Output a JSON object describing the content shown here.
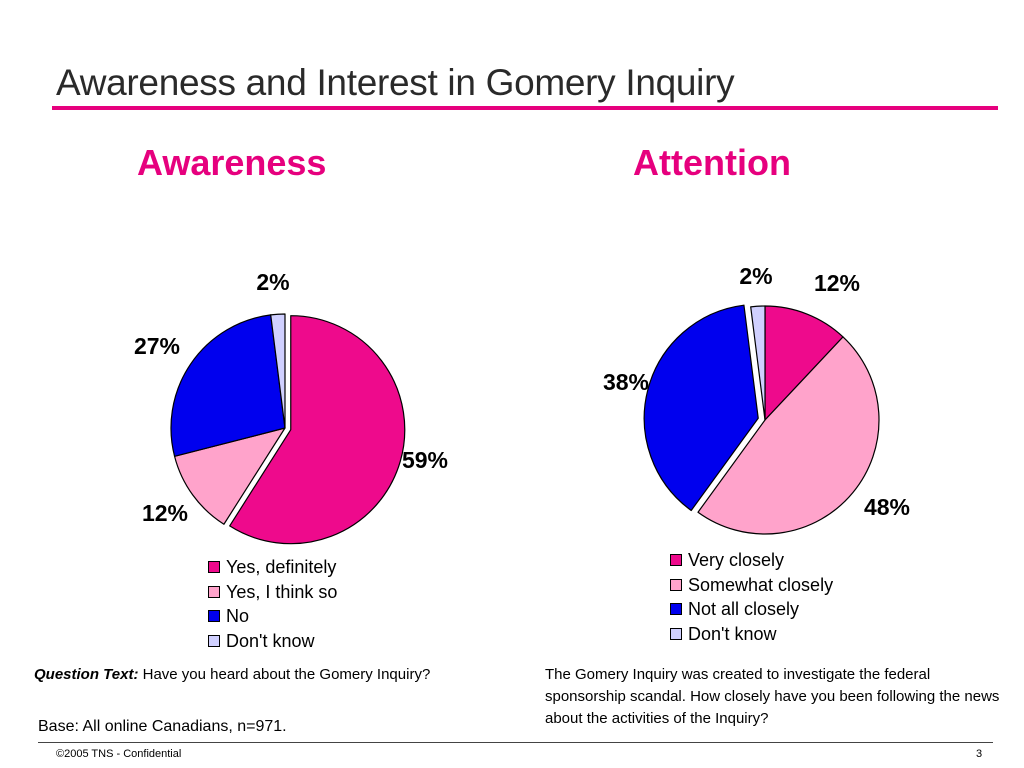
{
  "slide": {
    "title": "Awareness and Interest in Gomery Inquiry",
    "base": "Base: All online Canadians, n=971.",
    "copyright": "©2005 TNS - Confidential",
    "page_number": "3"
  },
  "colors": {
    "accent": "#e6007e",
    "rule": "#e6007e",
    "series": [
      "#ee0a8c",
      "#ffa3cb",
      "#0000ee",
      "#d0d0ff"
    ]
  },
  "left_chart": {
    "question_label": "Question Text:",
    "question_text": " Have you heard about the Gomery Inquiry?"
  },
  "right_chart": {
    "question_text": "The Gomery Inquiry was created to investigate the federal sponsorship scandal. How closely have you been following the news about the activities of the Inquiry?"
  },
  "chart_data": [
    {
      "type": "pie",
      "title": "Awareness",
      "categories": [
        "Yes, definitely",
        "Yes, I think so",
        "No",
        "Don't know"
      ],
      "values": [
        59,
        12,
        27,
        2
      ],
      "data_labels": [
        "59%",
        "12%",
        "27%",
        "2%"
      ],
      "exploded": [
        true,
        false,
        false,
        false
      ],
      "legend_position": "bottom"
    },
    {
      "type": "pie",
      "title": "Attention",
      "categories": [
        "Very closely",
        "Somewhat closely",
        "Not all closely",
        "Don't know"
      ],
      "values": [
        12,
        48,
        38,
        2
      ],
      "data_labels": [
        "12%",
        "48%",
        "38%",
        "2%"
      ],
      "exploded": [
        false,
        false,
        true,
        false
      ],
      "legend_position": "bottom"
    }
  ]
}
